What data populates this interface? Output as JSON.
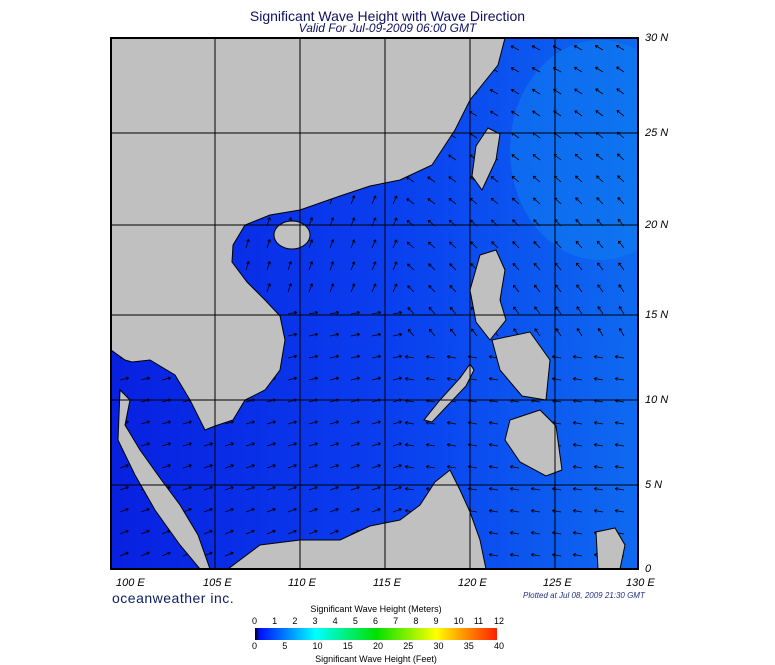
{
  "title": "Significant Wave Height with Wave Direction",
  "subtitle": "Valid For Jul-09-2009 06:00 GMT",
  "lat_labels": [
    "30 N",
    "25 N",
    "20 N",
    "15 N",
    "10 N",
    "5 N",
    "0"
  ],
  "lon_labels": [
    "100 E",
    "105 E",
    "110 E",
    "115 E",
    "120 E",
    "125 E",
    "130 E"
  ],
  "brand": "oceanweather inc.",
  "plotted": "Plotted at Jul 08, 2009 21:30 GMT",
  "legend": {
    "meters_title": "Significant Wave Height (Meters)",
    "meters_ticks": [
      "0",
      "1",
      "2",
      "3",
      "4",
      "5",
      "6",
      "7",
      "8",
      "9",
      "10",
      "11",
      "12"
    ],
    "feet_title": "Significant Wave Height (Feet)",
    "feet_ticks": [
      "0",
      "5",
      "10",
      "15",
      "20",
      "25",
      "30",
      "35",
      "40"
    ],
    "colors": [
      "#000000",
      "#0010ff",
      "#0080ff",
      "#00ffff",
      "#00ff80",
      "#00e000",
      "#a0ff00",
      "#ffff00",
      "#ffa000",
      "#ff2000"
    ]
  },
  "colors": {
    "land": "#c0c0c0",
    "ocean": "#0a3cf0",
    "ocean_light": "#0f70f0",
    "grid": "#000000"
  }
}
